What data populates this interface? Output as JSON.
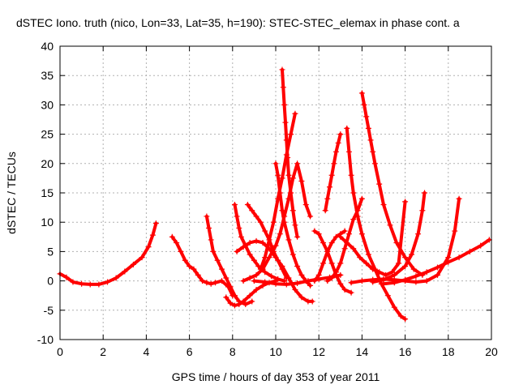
{
  "chart_data": {
    "type": "scatter",
    "title": "dSTEC Iono. truth (nico, Lon=33, Lat=35, h=190): STEC-STEC_elemax in phase cont. a",
    "xlabel": "GPS time / hours of day 353 of year 2011",
    "ylabel": "dSTEC  / TECUs",
    "xlim": [
      0,
      20
    ],
    "ylim": [
      -10,
      40
    ],
    "xticks": [
      "0",
      "2",
      "4",
      "6",
      "8",
      "10",
      "12",
      "14",
      "16",
      "18",
      "20"
    ],
    "yticks": [
      "-10",
      "-5",
      "0",
      "5",
      "10",
      "15",
      "20",
      "25",
      "30",
      "35",
      "40"
    ],
    "grid": true,
    "marker": "+",
    "color": "#ff0000",
    "series": [
      {
        "x": [
          0.0,
          0.3,
          0.6,
          1.0,
          1.4,
          1.8,
          2.2,
          2.6,
          3.0,
          3.4,
          3.8,
          4.1,
          4.3,
          4.45
        ],
        "y": [
          1.2,
          0.6,
          -0.2,
          -0.5,
          -0.6,
          -0.6,
          -0.2,
          0.5,
          1.6,
          2.8,
          4.0,
          5.8,
          7.8,
          9.8
        ]
      },
      {
        "x": [
          5.2,
          5.4,
          5.6,
          5.8,
          6.0,
          6.2,
          6.4,
          6.6,
          6.8,
          7.0,
          7.2,
          7.5,
          7.8,
          8.0
        ],
        "y": [
          7.5,
          6.5,
          5.0,
          3.5,
          2.5,
          2.0,
          1.0,
          0.0,
          -0.3,
          -0.5,
          -0.3,
          0.0,
          -1.0,
          -2.5
        ]
      },
      {
        "x": [
          6.8,
          6.9,
          7.0,
          7.1,
          7.3,
          7.5,
          7.7,
          7.9,
          8.1,
          8.3,
          8.6,
          8.9
        ],
        "y": [
          11.0,
          9.0,
          7.0,
          5.0,
          3.5,
          2.0,
          0.5,
          -1.0,
          -2.5,
          -3.5,
          -4.0,
          -3.5
        ]
      },
      {
        "x": [
          7.7,
          7.9,
          8.1,
          8.3,
          8.5,
          8.8,
          9.1,
          9.4,
          9.7,
          10.0
        ],
        "y": [
          -2.8,
          -3.8,
          -4.2,
          -4.0,
          -3.5,
          -2.5,
          -1.5,
          -0.8,
          -0.3,
          0.0
        ]
      },
      {
        "x": [
          8.1,
          8.2,
          8.3,
          8.4,
          8.6,
          8.8,
          9.0,
          9.2,
          9.5,
          9.8,
          10.1,
          10.4
        ],
        "y": [
          13.0,
          11.0,
          9.0,
          7.5,
          6.0,
          4.5,
          3.5,
          2.5,
          1.5,
          0.8,
          0.3,
          0.0
        ]
      },
      {
        "x": [
          8.2,
          8.5,
          8.8,
          9.1,
          9.4,
          9.7,
          10.0,
          10.3,
          10.6,
          10.9,
          11.2,
          11.5,
          11.7
        ],
        "y": [
          5.0,
          5.8,
          6.5,
          6.8,
          6.5,
          5.5,
          4.0,
          2.5,
          0.5,
          -1.5,
          -2.8,
          -3.5,
          -3.5
        ]
      },
      {
        "x": [
          8.7,
          8.9,
          9.1,
          9.3,
          9.5,
          9.7,
          9.9,
          10.1,
          10.3,
          10.5
        ],
        "y": [
          13.0,
          12.0,
          11.0,
          10.0,
          8.5,
          7.0,
          5.0,
          3.5,
          2.0,
          0.5
        ]
      },
      {
        "x": [
          8.5,
          8.8,
          9.1,
          9.4,
          9.7,
          10.0,
          10.2,
          10.4,
          10.6,
          10.8,
          11.0,
          11.2,
          11.4,
          11.6
        ],
        "y": [
          0.0,
          0.5,
          1.0,
          2.0,
          4.0,
          6.0,
          8.0,
          11.0,
          14.0,
          17.5,
          20.0,
          17.0,
          13.0,
          11.0
        ]
      },
      {
        "x": [
          9.3,
          9.5,
          9.7,
          9.9,
          10.1,
          10.3,
          10.5,
          10.7,
          10.9
        ],
        "y": [
          2.0,
          4.0,
          7.0,
          10.0,
          14.0,
          17.5,
          21.5,
          25.0,
          28.5
        ]
      },
      {
        "x": [
          10.0,
          10.1,
          10.2,
          10.3,
          10.4,
          10.6,
          10.8,
          11.0,
          11.2,
          11.4,
          11.6
        ],
        "y": [
          20.0,
          18.0,
          15.0,
          12.0,
          10.0,
          7.0,
          4.5,
          2.5,
          1.0,
          0.0,
          -0.8
        ]
      },
      {
        "x": [
          10.3,
          10.35,
          10.4,
          10.45,
          10.5,
          10.55,
          10.6,
          10.7,
          10.8,
          10.9,
          11.0
        ],
        "y": [
          36.0,
          33.0,
          30.0,
          27.0,
          24.0,
          21.0,
          18.0,
          15.0,
          12.0,
          9.5,
          7.5
        ]
      },
      {
        "x": [
          9.0,
          9.5,
          10.0,
          10.5,
          11.0,
          11.5,
          12.0,
          12.5,
          13.0
        ],
        "y": [
          0.0,
          -0.2,
          -0.5,
          -0.6,
          -0.4,
          0.0,
          0.3,
          0.6,
          1.0
        ]
      },
      {
        "x": [
          11.8,
          12.0,
          12.2,
          12.4,
          12.6,
          12.8,
          13.0,
          13.2,
          13.5
        ],
        "y": [
          8.5,
          8.0,
          6.5,
          5.0,
          3.0,
          1.0,
          -0.5,
          -1.5,
          -2.0
        ]
      },
      {
        "x": [
          11.8,
          12.0,
          12.2,
          12.4,
          12.6,
          12.8,
          13.0,
          13.2
        ],
        "y": [
          0.0,
          1.0,
          3.0,
          5.0,
          6.5,
          7.5,
          8.0,
          8.5
        ]
      },
      {
        "x": [
          12.3,
          12.4,
          12.5,
          12.6,
          12.7,
          12.8,
          12.9,
          13.0
        ],
        "y": [
          12.0,
          14.0,
          16.0,
          18.0,
          20.0,
          22.0,
          23.5,
          25.0
        ]
      },
      {
        "x": [
          12.4,
          12.6,
          12.8,
          13.0,
          13.2,
          13.4,
          13.6,
          13.8,
          14.0
        ],
        "y": [
          0.0,
          0.5,
          1.5,
          3.0,
          5.5,
          8.0,
          10.5,
          12.0,
          14.0
        ]
      },
      {
        "x": [
          13.3,
          13.4,
          13.5,
          13.6,
          13.8,
          14.0,
          14.3,
          14.6,
          14.9,
          15.2,
          15.5,
          15.8,
          16.0
        ],
        "y": [
          26.0,
          22.0,
          18.0,
          15.0,
          11.0,
          8.0,
          4.5,
          2.0,
          -0.5,
          -2.5,
          -4.5,
          -6.0,
          -6.5
        ]
      },
      {
        "x": [
          14.0,
          14.1,
          14.2,
          14.3,
          14.4,
          14.5,
          14.6,
          14.8,
          15.0,
          15.3,
          15.6,
          16.0,
          16.4,
          16.8
        ],
        "y": [
          32.0,
          30.0,
          28.0,
          26.0,
          24.0,
          22.0,
          20.0,
          16.5,
          13.0,
          9.5,
          6.5,
          4.0,
          2.0,
          1.0
        ]
      },
      {
        "x": [
          13.0,
          13.3,
          13.6,
          13.9,
          14.2,
          14.5,
          14.8,
          15.1,
          15.4,
          15.7,
          16.0
        ],
        "y": [
          7.5,
          6.5,
          5.5,
          4.0,
          3.0,
          2.0,
          1.5,
          1.0,
          1.5,
          3.0,
          13.5
        ]
      },
      {
        "x": [
          14.5,
          15.0,
          15.5,
          16.0,
          16.3,
          16.6,
          16.8,
          16.9
        ],
        "y": [
          -0.2,
          0.2,
          1.0,
          2.5,
          4.5,
          8.0,
          12.0,
          15.0
        ]
      },
      {
        "x": [
          13.5,
          14.0,
          14.5,
          15.0,
          15.5,
          16.0,
          16.5,
          17.0,
          17.5,
          18.0,
          18.3,
          18.5
        ],
        "y": [
          -0.3,
          0.0,
          0.2,
          0.3,
          0.2,
          0.0,
          -0.2,
          0.0,
          1.0,
          4.0,
          8.5,
          14.0
        ]
      },
      {
        "x": [
          15.0,
          15.5,
          16.0,
          16.5,
          17.0,
          17.5,
          18.0,
          18.5,
          19.0,
          19.5,
          19.9
        ],
        "y": [
          -0.5,
          -0.3,
          0.2,
          0.8,
          1.5,
          2.3,
          3.2,
          4.0,
          5.0,
          6.0,
          7.0
        ]
      }
    ]
  }
}
